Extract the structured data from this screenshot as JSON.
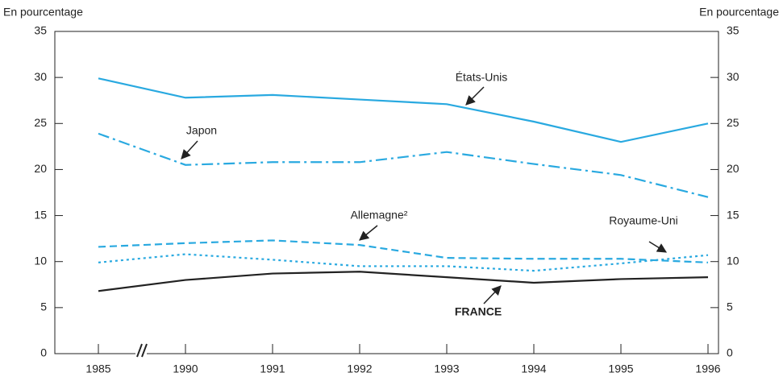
{
  "chart_data": {
    "type": "line",
    "y_label": "En pourcentage",
    "y2_label": "En pourcentage",
    "categories": [
      "1985",
      "1990",
      "1991",
      "1992",
      "1993",
      "1994",
      "1995",
      "1996"
    ],
    "ylim": [
      0,
      35
    ],
    "yticks": [
      0,
      5,
      10,
      15,
      20,
      25,
      30,
      35
    ],
    "y2lim": [
      0,
      35
    ],
    "y2ticks": [
      0,
      5,
      10,
      15,
      20,
      25,
      30,
      35
    ],
    "series": [
      {
        "name": "États-Unis",
        "color": "#29a9e0",
        "style": "solid",
        "values": [
          29.9,
          27.8,
          28.1,
          27.6,
          27.1,
          25.2,
          23.0,
          25.0
        ]
      },
      {
        "name": "Japon",
        "color": "#29a9e0",
        "style": "dashdot",
        "values": [
          23.9,
          20.5,
          20.8,
          20.8,
          21.9,
          20.6,
          19.4,
          17.0
        ]
      },
      {
        "name": "Allemagne²",
        "color": "#29a9e0",
        "style": "dashed",
        "values": [
          11.6,
          12.0,
          12.3,
          11.8,
          10.4,
          10.3,
          10.3,
          9.9
        ]
      },
      {
        "name": "Royaume-Uni",
        "color": "#29a9e0",
        "style": "dotted",
        "values": [
          9.9,
          10.8,
          10.2,
          9.5,
          9.5,
          9.0,
          9.8,
          10.7
        ]
      },
      {
        "name": "FRANCE",
        "color": "#222222",
        "style": "solid",
        "values": [
          6.8,
          8.0,
          8.7,
          8.9,
          8.3,
          7.7,
          8.1,
          8.3
        ]
      }
    ]
  }
}
